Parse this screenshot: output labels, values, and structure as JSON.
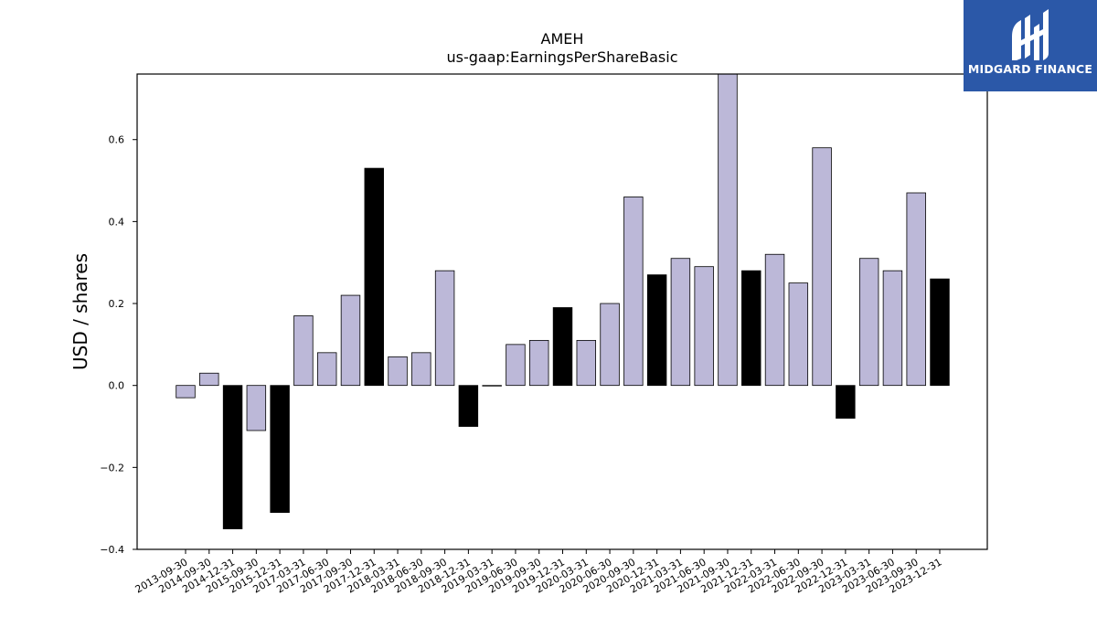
{
  "chart_data": {
    "type": "bar",
    "title": "AMEH",
    "subtitle": "us-gaap:EarningsPerShareBasic",
    "xlabel": "",
    "ylabel": "USD / shares",
    "ylim": [
      -0.4,
      0.76
    ],
    "yticks": [
      -0.4,
      -0.2,
      0.0,
      0.2,
      0.4,
      0.6
    ],
    "ytick_labels": [
      "−0.4",
      "−0.2",
      "0.0",
      "0.2",
      "0.4",
      "0.6"
    ],
    "grid": false,
    "categories": [
      "2013-09-30",
      "2014-09-30",
      "2014-12-31",
      "2015-09-30",
      "2015-12-31",
      "2017-03-31",
      "2017-06-30",
      "2017-09-30",
      "2017-12-31",
      "2018-03-31",
      "2018-06-30",
      "2018-09-30",
      "2018-12-31",
      "2019-03-31",
      "2019-06-30",
      "2019-09-30",
      "2019-12-31",
      "2020-03-31",
      "2020-06-30",
      "2020-09-30",
      "2020-12-31",
      "2021-03-31",
      "2021-06-30",
      "2021-09-30",
      "2021-12-31",
      "2022-03-31",
      "2022-06-30",
      "2022-09-30",
      "2022-12-31",
      "2023-03-31",
      "2023-06-30",
      "2023-09-30",
      "2023-12-31"
    ],
    "values": [
      -0.03,
      0.03,
      -0.35,
      -0.11,
      -0.31,
      0.17,
      0.08,
      0.22,
      0.53,
      0.07,
      0.08,
      0.28,
      -0.1,
      0.0,
      0.1,
      0.11,
      0.19,
      0.11,
      0.2,
      0.46,
      0.27,
      0.31,
      0.29,
      0.76,
      0.28,
      0.32,
      0.25,
      0.58,
      -0.08,
      0.31,
      0.28,
      0.47,
      0.26
    ],
    "bar_colors": [
      "#bcb8d8",
      "#bcb8d8",
      "#000000",
      "#bcb8d8",
      "#000000",
      "#bcb8d8",
      "#bcb8d8",
      "#bcb8d8",
      "#000000",
      "#bcb8d8",
      "#bcb8d8",
      "#bcb8d8",
      "#000000",
      "#bcb8d8",
      "#bcb8d8",
      "#bcb8d8",
      "#000000",
      "#bcb8d8",
      "#bcb8d8",
      "#bcb8d8",
      "#000000",
      "#bcb8d8",
      "#bcb8d8",
      "#bcb8d8",
      "#000000",
      "#bcb8d8",
      "#bcb8d8",
      "#bcb8d8",
      "#000000",
      "#bcb8d8",
      "#bcb8d8",
      "#bcb8d8",
      "#000000"
    ]
  },
  "logo": {
    "text": "MIDGARD FINANCE",
    "background": "#2b58a8"
  }
}
